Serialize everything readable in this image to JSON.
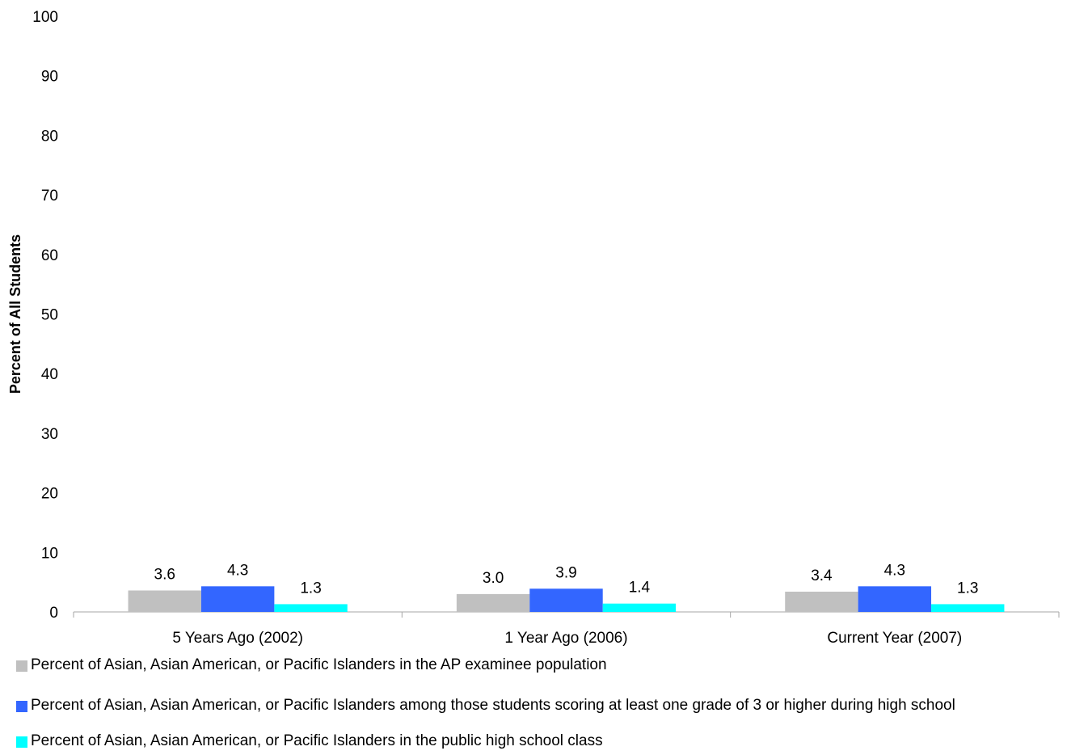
{
  "chart_data": {
    "type": "bar",
    "title": "",
    "xlabel": "",
    "ylabel": "Percent of All Students",
    "ylim": [
      0,
      100
    ],
    "yticks": [
      "0",
      "10",
      "20",
      "30",
      "40",
      "50",
      "60",
      "70",
      "80",
      "90",
      "100"
    ],
    "categories": [
      "5 Years Ago (2002)",
      "1 Year Ago (2006)",
      "Current Year (2007)"
    ],
    "series": [
      {
        "name": "Percent of Asian, Asian American, or Pacific Islanders in the AP examinee population",
        "color": "#c0c0c0",
        "values": [
          3.6,
          3.0,
          3.4
        ],
        "labels": [
          "3.6",
          "3.0",
          "3.4"
        ]
      },
      {
        "name": "Percent of Asian, Asian American, or Pacific Islanders among those students scoring at least one grade of 3 or higher during high school",
        "color": "#3366ff",
        "values": [
          4.3,
          3.9,
          4.3
        ],
        "labels": [
          "4.3",
          "3.9",
          "4.3"
        ]
      },
      {
        "name": "Percent of Asian, Asian American, or Pacific Islanders in the public high school class",
        "color": "#00ffff",
        "values": [
          1.3,
          1.4,
          1.3
        ],
        "labels": [
          "1.3",
          "1.4",
          "1.3"
        ]
      }
    ],
    "grid": false,
    "legend_position": "bottom"
  }
}
